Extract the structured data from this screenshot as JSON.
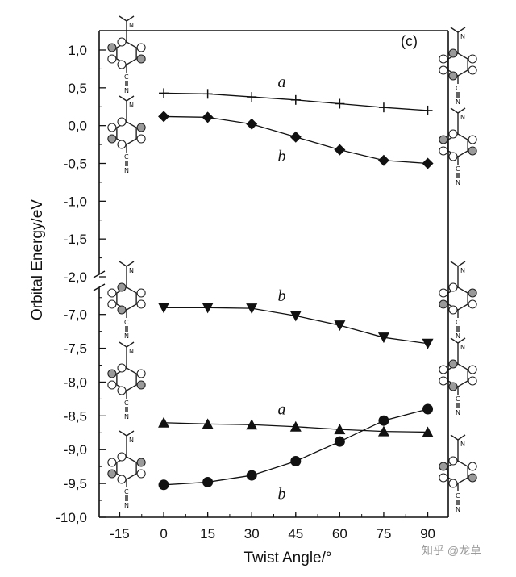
{
  "chart_data": {
    "type": "line",
    "panel_label": "(c)",
    "xlabel": "Twist Angle/°",
    "ylabel": "Orbital Energy/eV",
    "x_ticks": [
      "-15",
      "0",
      "15",
      "30",
      "45",
      "60",
      "75",
      "90"
    ],
    "x_tick_values": [
      -15,
      0,
      15,
      30,
      45,
      60,
      75,
      90
    ],
    "xlim": [
      -22,
      97
    ],
    "y_axis_break": true,
    "upper_segment": {
      "ylim": [
        -2.0,
        1.0
      ],
      "ticks": [
        "1,0",
        "0,5",
        "0,0",
        "-0,5",
        "-1,0",
        "-1,5",
        "-2,0"
      ],
      "tick_values": [
        1.0,
        0.5,
        0.0,
        -0.5,
        -1.0,
        -1.5,
        -2.0
      ]
    },
    "lower_segment": {
      "ylim": [
        -10.0,
        -6.55
      ],
      "ticks": [
        "-7,0",
        "-7,5",
        "-8,0",
        "-8,5",
        "-9,0",
        "-9,5",
        "-10,0"
      ],
      "tick_values": [
        -7.0,
        -7.5,
        -8.0,
        -8.5,
        -9.0,
        -9.5,
        -10.0
      ]
    },
    "x": [
      0,
      15,
      30,
      45,
      60,
      75,
      90
    ],
    "series": [
      {
        "name": "a",
        "segment": "upper",
        "marker": "plus",
        "values": [
          0.43,
          0.42,
          0.38,
          0.34,
          0.29,
          0.24,
          0.2
        ]
      },
      {
        "name": "b",
        "segment": "upper",
        "marker": "diamond",
        "values": [
          0.12,
          0.11,
          0.02,
          -0.15,
          -0.32,
          -0.46,
          -0.5
        ]
      },
      {
        "name": "b",
        "segment": "lower",
        "marker": "triangle-down",
        "values": [
          -6.9,
          -6.9,
          -6.91,
          -7.02,
          -7.16,
          -7.34,
          -7.43
        ]
      },
      {
        "name": "a",
        "segment": "lower",
        "marker": "triangle-up",
        "values": [
          -8.6,
          -8.62,
          -8.63,
          -8.66,
          -8.7,
          -8.73,
          -8.74
        ]
      },
      {
        "name": "b",
        "segment": "lower",
        "marker": "circle",
        "values": [
          -9.52,
          -9.48,
          -9.38,
          -9.17,
          -8.88,
          -8.57,
          -8.4
        ]
      }
    ],
    "annotations": [
      {
        "text": "a",
        "at_x": 30,
        "near_series": 0,
        "where": "above"
      },
      {
        "text": "b",
        "at_x": 30,
        "near_series": 1,
        "where": "below"
      },
      {
        "text": "b",
        "at_x": 30,
        "near_series": 2,
        "where": "above"
      },
      {
        "text": "a",
        "at_x": 30,
        "near_series": 3,
        "where": "above"
      },
      {
        "text": "b",
        "at_x": 30,
        "near_series": 4,
        "where": "below"
      }
    ],
    "molecule_labels": [
      "N",
      "C",
      "N"
    ]
  },
  "watermark": "知乎 @龙草"
}
